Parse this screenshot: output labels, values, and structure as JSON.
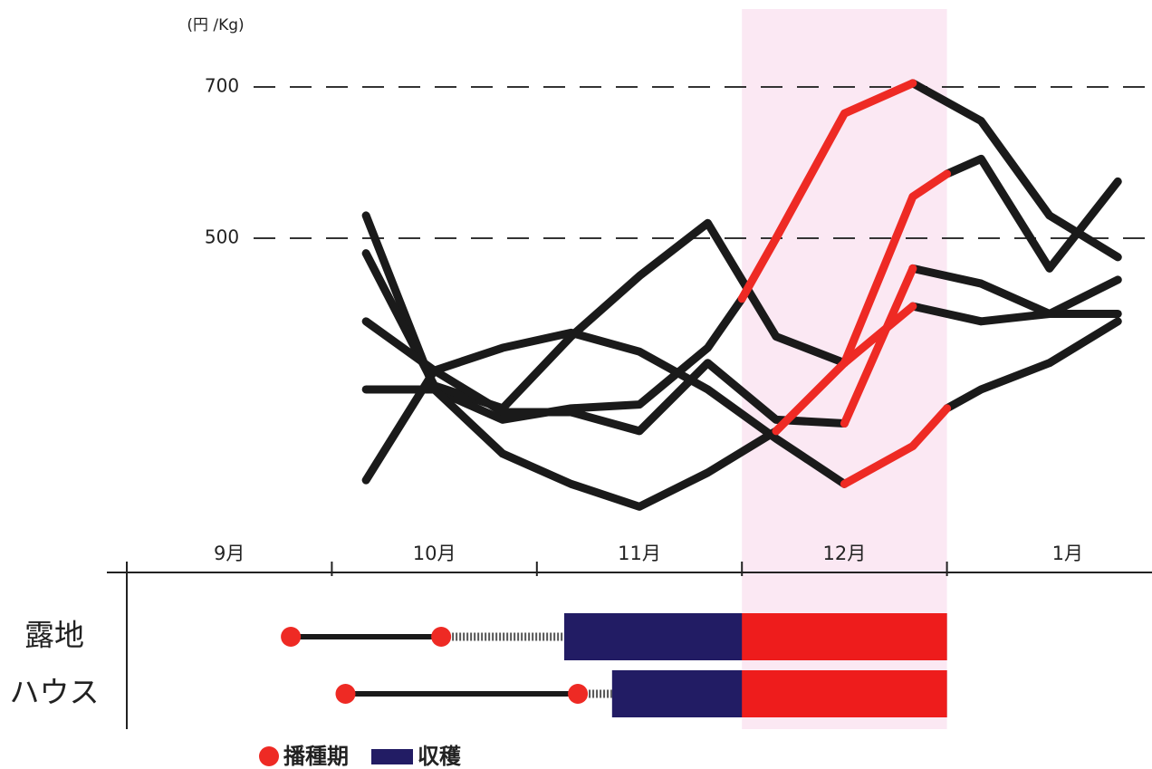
{
  "chart_data": {
    "type": "line",
    "unit_label": "(円 /Kg)",
    "ylim": [
      58,
      815
    ],
    "yticks": [
      500,
      700
    ],
    "grid": "dashed",
    "xlim": [
      0,
      15
    ],
    "months": [
      "9月",
      "10月",
      "11月",
      "12月",
      "1月"
    ],
    "highlight_color": "#fbe8f3",
    "series": [
      {
        "color": "#1a1a1a",
        "x": [
          3.5,
          4.5,
          5.5,
          6.5,
          7.5,
          8.5,
          9
        ],
        "values": [
          530,
          300,
          260,
          275,
          280,
          355,
          420
        ]
      },
      {
        "color": "#1a1a1a",
        "x": [
          11.5,
          12.5,
          13.5,
          14.5
        ],
        "values": [
          705,
          655,
          530,
          475
        ]
      },
      {
        "color": "#1a1a1a",
        "x": [
          3.5,
          4.5,
          5.5,
          6.5,
          7.5,
          8.5,
          9.5,
          10.5
        ],
        "values": [
          480,
          305,
          275,
          370,
          450,
          520,
          370,
          335
        ]
      },
      {
        "color": "#1a1a1a",
        "x": [
          11.5,
          12.5,
          13.5,
          14.5
        ],
        "values": [
          410,
          390,
          400,
          400
        ]
      },
      {
        "color": "#1a1a1a",
        "x": [
          3.5,
          4.5,
          5.5,
          6.5,
          7.5,
          8.5,
          9.5,
          10.5
        ],
        "values": [
          390,
          325,
          355,
          375,
          350,
          300,
          235,
          175
        ]
      },
      {
        "color": "#1a1a1a",
        "x": [
          12,
          12.5,
          13.5,
          14.5
        ],
        "values": [
          275,
          300,
          335,
          390
        ]
      },
      {
        "color": "#1a1a1a",
        "x": [
          3.5,
          4.5,
          5.5,
          6.5,
          7.5,
          8.5,
          9.5,
          10.5
        ],
        "values": [
          180,
          325,
          270,
          270,
          245,
          335,
          260,
          255
        ]
      },
      {
        "color": "#1a1a1a",
        "x": [
          11.5,
          12.5,
          13.5,
          14.5
        ],
        "values": [
          460,
          440,
          400,
          445
        ]
      },
      {
        "color": "#1a1a1a",
        "x": [
          3.5,
          4.5,
          5.5,
          6.5,
          7.5,
          8.5,
          9.5
        ],
        "values": [
          300,
          300,
          215,
          175,
          145,
          190,
          245
        ]
      },
      {
        "color": "#1a1a1a",
        "x": [
          12,
          12.5,
          13.5,
          14.5
        ],
        "values": [
          585,
          605,
          460,
          575
        ]
      },
      {
        "color": "#ee2a24",
        "x": [
          9,
          9.5,
          10.5,
          11.5
        ],
        "values": [
          420,
          500,
          665,
          705
        ]
      },
      {
        "color": "#ee2a24",
        "x": [
          10.5,
          11.5
        ],
        "values": [
          335,
          410
        ]
      },
      {
        "color": "#ee2a24",
        "x": [
          10.5,
          11.5,
          12
        ],
        "values": [
          175,
          225,
          275
        ]
      },
      {
        "color": "#ee2a24",
        "x": [
          10.5,
          11.5
        ],
        "values": [
          255,
          460
        ]
      },
      {
        "color": "#ee2a24",
        "x": [
          9.5,
          10.5,
          11.5,
          12
        ],
        "values": [
          245,
          335,
          555,
          585
        ]
      }
    ],
    "schedule": {
      "rows": [
        {
          "label": "露地",
          "sowing": [
            2.4,
            4.6
          ],
          "harvest": [
            6.4,
            12
          ]
        },
        {
          "label": "ハウス",
          "sowing": [
            3.2,
            6.6
          ],
          "harvest": [
            7.1,
            12
          ]
        }
      ],
      "sowing_color": "#ee2a24",
      "harvest_color": "#221c64",
      "harvest_highlight_color": "#ee1c1c",
      "legend": {
        "sowing": "播種期",
        "harvest": "収穫"
      }
    }
  }
}
